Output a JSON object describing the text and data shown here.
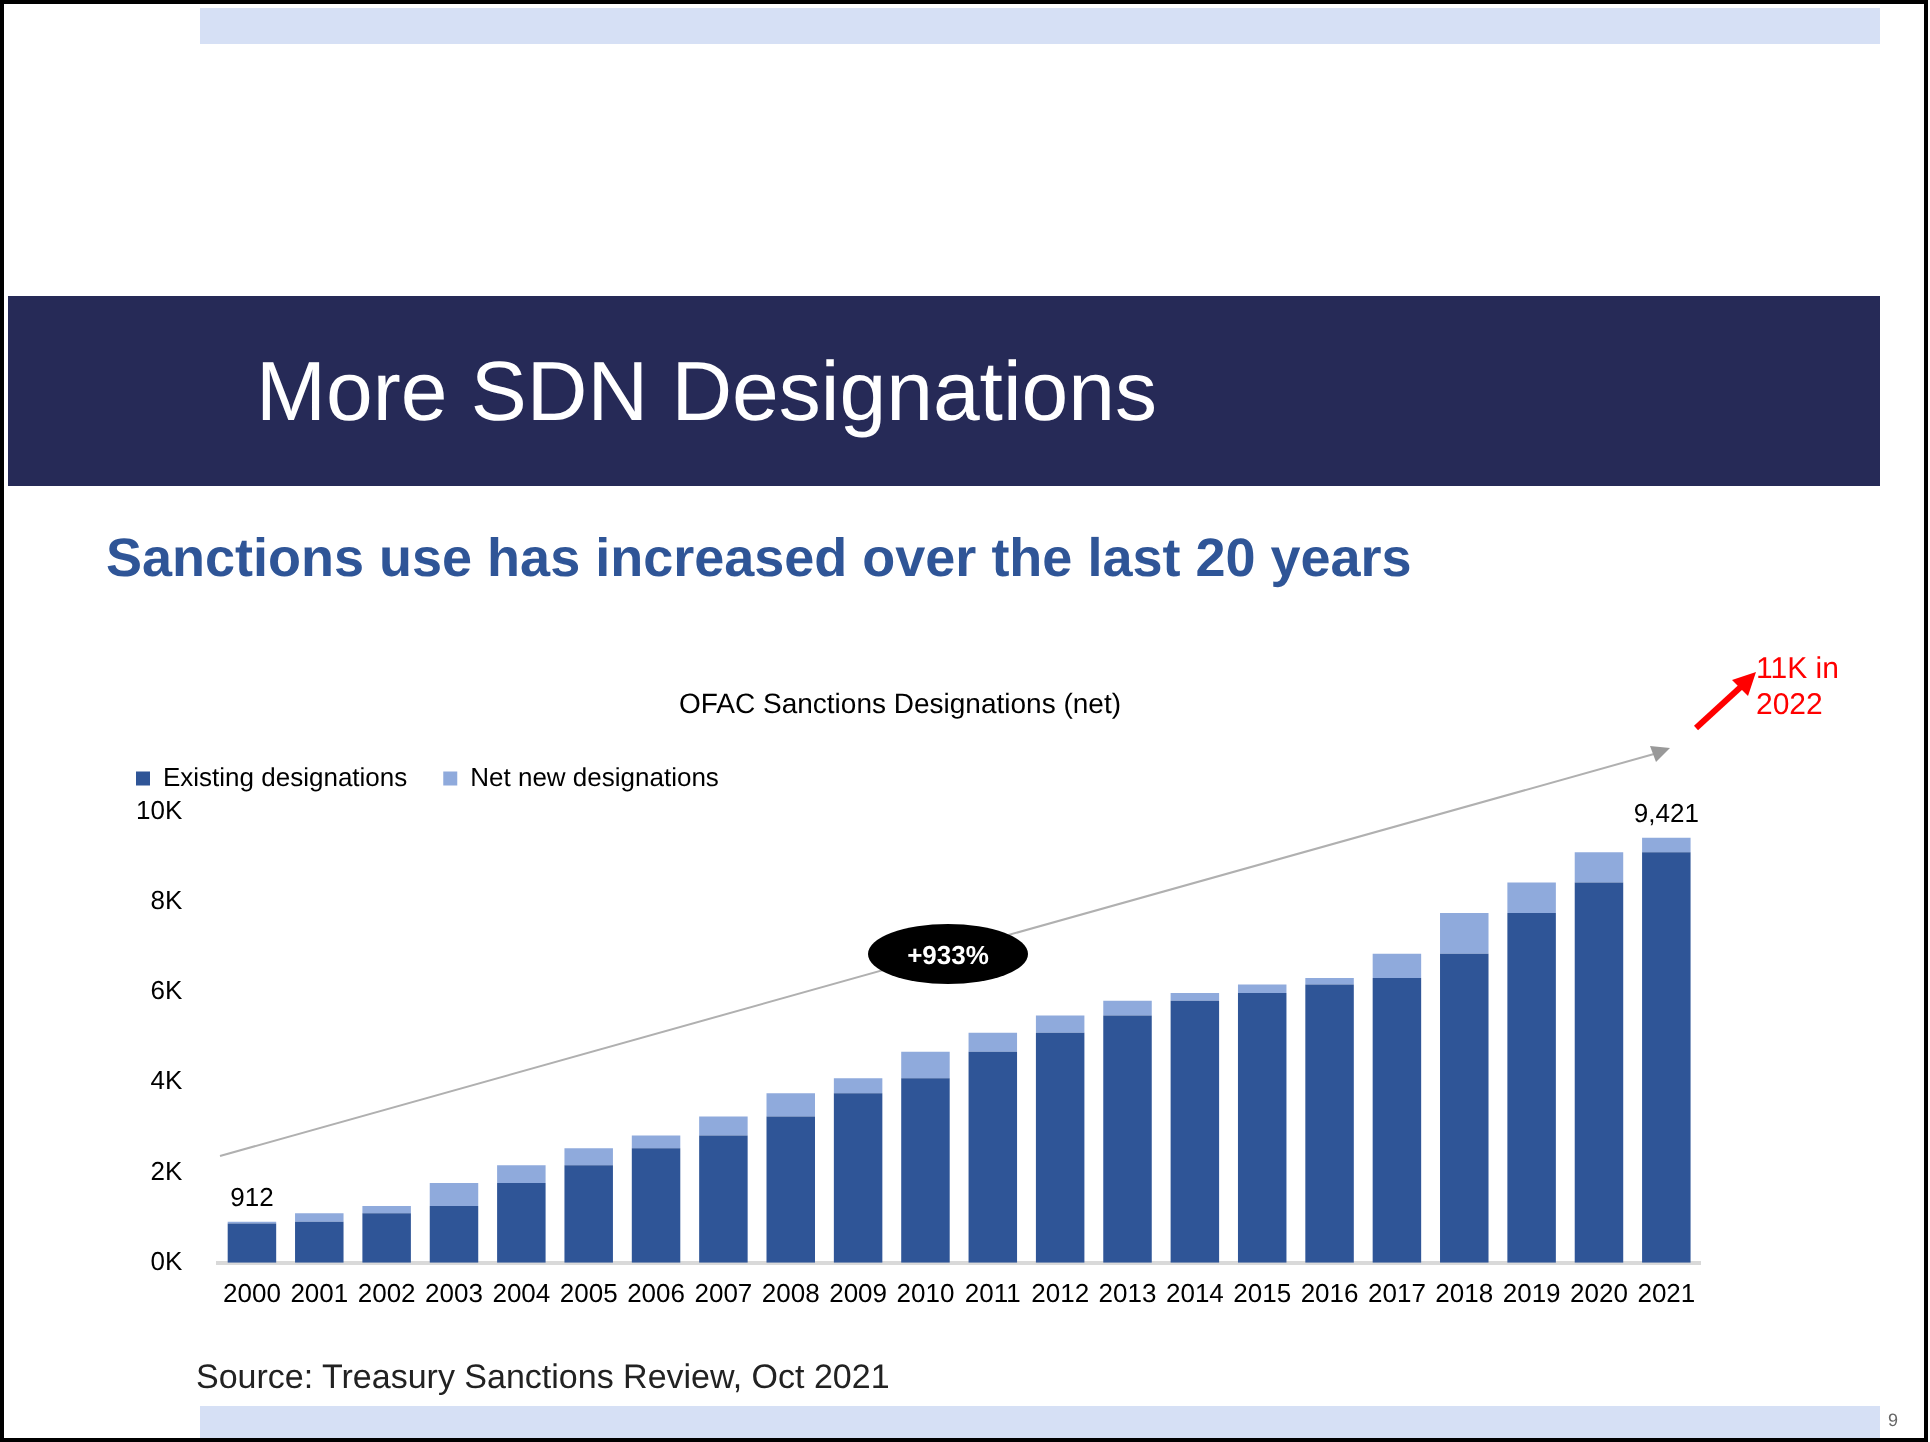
{
  "chart_data": {
    "type": "bar",
    "title": "More SDN Designations",
    "subtitle": "Sanctions use has increased over the last 20 years",
    "categories": [
      "2000",
      "2001",
      "2002",
      "2003",
      "2004",
      "2005",
      "2006",
      "2007",
      "2008",
      "2009",
      "2010",
      "2011",
      "2012",
      "2013",
      "2014",
      "2015",
      "2016",
      "2017",
      "2018",
      "2019",
      "2020",
      "2021"
    ],
    "series": [
      {
        "name": "Existing designations",
        "color": "#2f5597",
        "values": [
          870,
          912,
          1100,
          1260,
          1770,
          2160,
          2540,
          2820,
          3240,
          3760,
          4090,
          4680,
          5100,
          5480,
          5810,
          5980,
          6170,
          6310,
          6850,
          7750,
          8430,
          9100
        ]
      },
      {
        "name": "Net new designations",
        "color": "#8faadc",
        "values": [
          42,
          188,
          160,
          510,
          390,
          380,
          280,
          420,
          520,
          330,
          590,
          420,
          380,
          330,
          170,
          190,
          140,
          540,
          900,
          680,
          670,
          321
        ]
      }
    ],
    "stacked": true,
    "totals": [
      "912",
      null,
      null,
      null,
      null,
      null,
      null,
      null,
      null,
      null,
      null,
      null,
      null,
      null,
      null,
      null,
      null,
      null,
      null,
      null,
      null,
      "9,421"
    ],
    "ylim": [
      0,
      10000
    ],
    "yticks": [
      {
        "value": 0,
        "label": "0K"
      },
      {
        "value": 2000,
        "label": "2K"
      },
      {
        "value": 4000,
        "label": "4K"
      },
      {
        "value": 6000,
        "label": "6K"
      },
      {
        "value": 8000,
        "label": "8K"
      },
      {
        "value": 10000,
        "label": "10K"
      }
    ],
    "grid": false,
    "legend": "top left",
    "annotations": [
      "OFAC Sanctions Designations (net)",
      "+933%",
      "11K in 2022",
      "Source: Treasury Sanctions Review, Oct 2021",
      "9"
    ]
  }
}
